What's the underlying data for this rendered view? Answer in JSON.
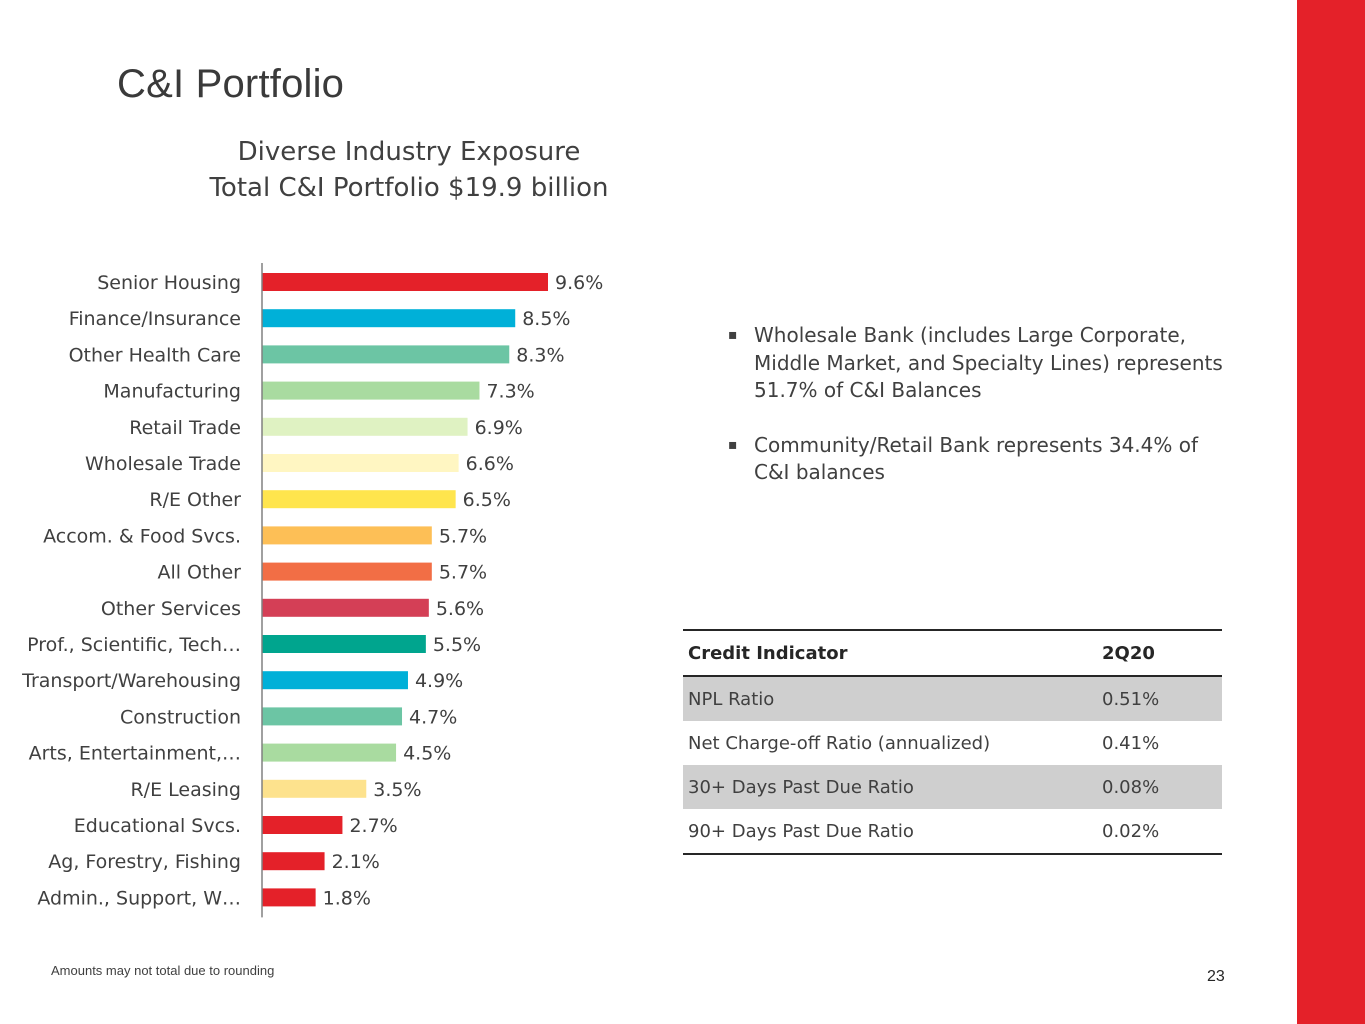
{
  "title": "C&I Portfolio",
  "subtitle_line1": "Diverse Industry Exposure",
  "subtitle_line2": "Total C&I Portfolio $19.9 billion",
  "bullets": [
    "Wholesale Bank (includes Large Corporate, Middle Market, and Specialty Lines) represents 51.7% of C&I Balances",
    "Community/Retail Bank represents 34.4% of C&I balances"
  ],
  "bullet_glyph": "▪",
  "credit_table": {
    "header_label": "Credit Indicator",
    "header_value": "2Q20",
    "rows": [
      {
        "label": "NPL Ratio",
        "value": "0.51%"
      },
      {
        "label": "Net Charge-off Ratio (annualized)",
        "value": "0.41%"
      },
      {
        "label": "30+ Days Past Due Ratio",
        "value": "0.08%"
      },
      {
        "label": "90+ Days Past Due Ratio",
        "value": "0.02%"
      }
    ]
  },
  "footnote": "Amounts may not total due to rounding",
  "page_number": "23",
  "colors": {
    "accent_red": "#e42129"
  },
  "chart_data": {
    "type": "bar",
    "orientation": "horizontal",
    "title": "",
    "xlabel": "",
    "ylabel": "",
    "xlim": [
      0,
      9.6
    ],
    "categories": [
      "Senior Housing",
      "Finance/Insurance",
      "Other Health Care",
      "Manufacturing",
      "Retail Trade",
      "Wholesale Trade",
      "R/E Other",
      "Accom. & Food Svcs.",
      "All Other",
      "Other Services",
      "Prof., Scientific, Tech…",
      "Transport/Warehousing",
      "Construction",
      "Arts, Entertainment,…",
      "R/E Leasing",
      "Educational Svcs.",
      "Ag, Forestry, Fishing",
      "Admin., Support, W…"
    ],
    "values": [
      9.6,
      8.5,
      8.3,
      7.3,
      6.9,
      6.6,
      6.5,
      5.7,
      5.7,
      5.6,
      5.5,
      4.9,
      4.7,
      4.5,
      3.5,
      2.7,
      2.1,
      1.8
    ],
    "labels": [
      "9.6%",
      "8.5%",
      "8.3%",
      "7.3%",
      "6.9%",
      "6.6%",
      "6.5%",
      "5.7%",
      "5.7%",
      "5.6%",
      "5.5%",
      "4.9%",
      "4.7%",
      "4.5%",
      "3.5%",
      "2.7%",
      "2.1%",
      "1.8%"
    ],
    "colors": [
      "#e42129",
      "#00b0d8",
      "#6cc5a4",
      "#a9dba0",
      "#dff2c2",
      "#fff6c2",
      "#ffe54d",
      "#fdbf56",
      "#f26e45",
      "#d43f56",
      "#00a58e",
      "#00b0d8",
      "#6cc5a4",
      "#a9dba0",
      "#fde28d",
      "#e42129",
      "#e42129",
      "#e42129"
    ],
    "grid": false,
    "legend": "none"
  }
}
